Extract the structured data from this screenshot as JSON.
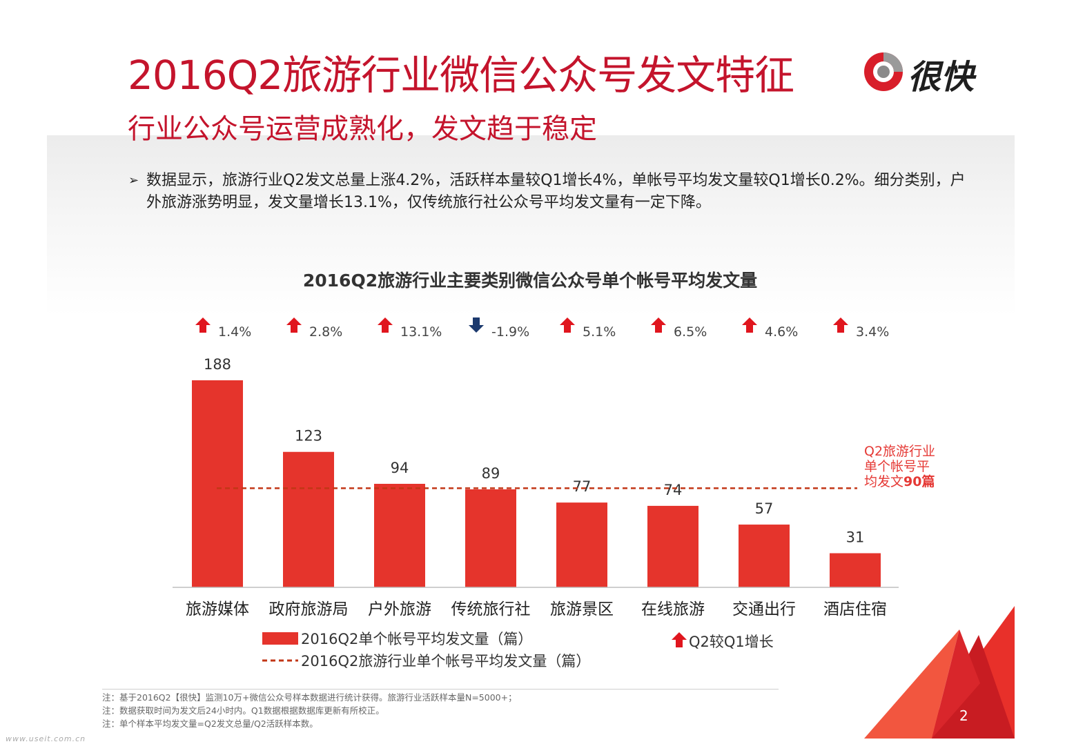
{
  "header": {
    "title": "2016Q2旅游行业微信公众号发文特征",
    "subtitle": "行业公众号运营成熟化，发文趋于稳定",
    "logo_text": "很快"
  },
  "bullet": {
    "marker": "➢",
    "text": "数据显示，旅游行业Q2发文总量上涨4.2%，活跃样本量较Q1增长4%，单帐号平均发文量较Q1增长0.2%。细分类别，户外旅游涨势明显，发文量增长13.1%，仅传统旅行社公众号平均发文量有一定下降。"
  },
  "chart_data": {
    "type": "bar",
    "title": "2016Q2旅游行业主要类别微信公众号单个帐号平均发文量",
    "categories": [
      "旅游媒体",
      "政府旅游局",
      "户外旅游",
      "传统旅行社",
      "旅游景区",
      "在线旅游",
      "交通出行",
      "酒店住宿"
    ],
    "series": [
      {
        "name": "2016Q2单个帐号平均发文量（篇）",
        "values": [
          188,
          123,
          94,
          89,
          77,
          74,
          57,
          31
        ]
      }
    ],
    "growth": [
      "1.4%",
      "2.8%",
      "13.1%",
      "-1.9%",
      "5.1%",
      "6.5%",
      "4.6%",
      "3.4%"
    ],
    "growth_direction": [
      "up",
      "up",
      "up",
      "down",
      "up",
      "up",
      "up",
      "up"
    ],
    "reference_line": {
      "name": "2016Q2旅游行业单个帐号平均发文量（篇）",
      "value": 90,
      "annotation_lines": [
        "Q2旅游行业",
        "单个帐号平",
        "均发文"
      ],
      "annotation_value": "90篇"
    },
    "growth_legend": "Q2较Q1增长",
    "ylim": [
      0,
      188
    ],
    "colors": {
      "bar": "#e5342c",
      "up_arrow": "#e0161e",
      "down_arrow": "#1c3a6e",
      "ref_line": "#c23616",
      "annotation": "#e53935"
    }
  },
  "notes": [
    "注：基于2016Q2【很快】监测10万+微信公众号样本数据进行统计获得。旅游行业活跃样本量N=5000+；",
    "注：数据获取时间为发文后24小时内。Q1数据根据数据库更新有所校正。",
    "注：单个样本平均发文量=Q2发文总量/Q2活跃样本数。"
  ],
  "page_number": "2",
  "watermark": "www.useit.com.cn"
}
